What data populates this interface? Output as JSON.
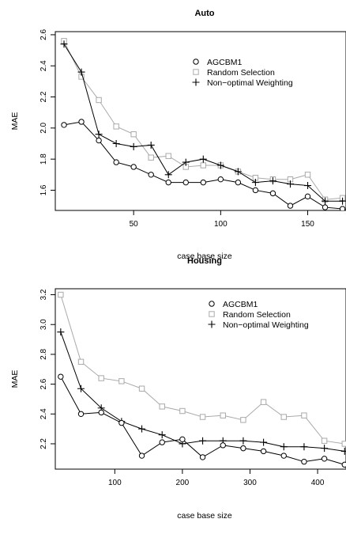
{
  "chart_data": [
    {
      "type": "line",
      "title": "Auto",
      "xlabel": "case base size",
      "ylabel": "MAE",
      "xlim": [
        5,
        172
      ],
      "ylim": [
        1.47,
        2.62
      ],
      "xticks": [
        50,
        100,
        150
      ],
      "yticks": [
        1.6,
        1.8,
        2.0,
        2.2,
        2.4,
        2.6
      ],
      "ytick_labels": [
        "1.6",
        "1.8",
        "2.0",
        "2.2",
        "2.4",
        "2.6"
      ],
      "x": [
        10,
        20,
        30,
        40,
        50,
        60,
        70,
        80,
        90,
        100,
        110,
        120,
        130,
        140,
        150,
        160,
        170
      ],
      "legend_position": "top-right",
      "series": [
        {
          "name": "AGCBM1",
          "marker": "circle",
          "color": "#000000",
          "values": [
            2.02,
            2.04,
            1.92,
            1.78,
            1.75,
            1.7,
            1.65,
            1.65,
            1.65,
            1.67,
            1.65,
            1.6,
            1.58,
            1.5,
            1.56,
            1.49,
            1.48
          ]
        },
        {
          "name": "Random Selection",
          "marker": "square",
          "color": "#aaaaaa",
          "values": [
            2.56,
            2.33,
            2.18,
            2.01,
            1.96,
            1.81,
            1.82,
            1.75,
            1.76,
            1.76,
            1.72,
            1.68,
            1.67,
            1.67,
            1.7,
            1.54,
            1.55
          ]
        },
        {
          "name": "Non−optimal Weighting",
          "marker": "plus",
          "color": "#000000",
          "values": [
            2.54,
            2.36,
            1.96,
            1.9,
            1.88,
            1.89,
            1.7,
            1.78,
            1.8,
            1.76,
            1.72,
            1.65,
            1.66,
            1.64,
            1.63,
            1.53,
            1.53
          ]
        }
      ]
    },
    {
      "type": "line",
      "title": "Housing",
      "xlabel": "case base size",
      "ylabel": "MAE",
      "xlim": [
        12,
        442
      ],
      "ylim": [
        2.03,
        3.24
      ],
      "xticks": [
        100,
        200,
        300,
        400
      ],
      "yticks": [
        2.2,
        2.4,
        2.6,
        2.8,
        3.0,
        3.2
      ],
      "ytick_labels": [
        "2.2",
        "2.4",
        "2.6",
        "2.8",
        "3.0",
        "3.2"
      ],
      "x": [
        20,
        50,
        80,
        110,
        140,
        170,
        200,
        230,
        260,
        290,
        320,
        350,
        380,
        410,
        440
      ],
      "legend_position": "top-right",
      "series": [
        {
          "name": "AGCBM1",
          "marker": "circle",
          "color": "#000000",
          "values": [
            2.65,
            2.4,
            2.41,
            2.34,
            2.12,
            2.21,
            2.23,
            2.11,
            2.19,
            2.17,
            2.15,
            2.12,
            2.08,
            2.1,
            2.06
          ]
        },
        {
          "name": "Random Selection",
          "marker": "square",
          "color": "#aaaaaa",
          "values": [
            3.2,
            2.75,
            2.64,
            2.62,
            2.57,
            2.45,
            2.42,
            2.38,
            2.39,
            2.36,
            2.48,
            2.38,
            2.39,
            2.22,
            2.2
          ]
        },
        {
          "name": "Non−optimal Weighting",
          "marker": "plus",
          "color": "#000000",
          "values": [
            2.95,
            2.57,
            2.44,
            2.35,
            2.3,
            2.26,
            2.2,
            2.22,
            2.22,
            2.22,
            2.21,
            2.18,
            2.18,
            2.17,
            2.15
          ]
        }
      ]
    }
  ]
}
